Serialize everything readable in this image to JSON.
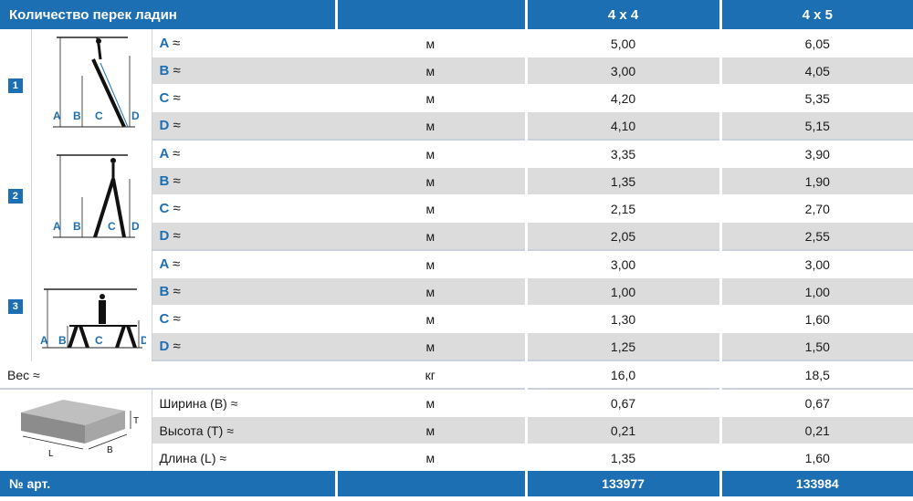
{
  "header": {
    "title": "Количество перек ладин",
    "col1": "4 x 4",
    "col2": "4 x 5"
  },
  "groups": [
    {
      "number": "1",
      "rows": [
        {
          "letter": "A",
          "unit": "м",
          "v1": "5,00",
          "v2": "6,05"
        },
        {
          "letter": "B",
          "unit": "м",
          "v1": "3,00",
          "v2": "4,05"
        },
        {
          "letter": "C",
          "unit": "м",
          "v1": "4,20",
          "v2": "5,35"
        },
        {
          "letter": "D",
          "unit": "м",
          "v1": "4,10",
          "v2": "5,15"
        }
      ]
    },
    {
      "number": "2",
      "rows": [
        {
          "letter": "A",
          "unit": "м",
          "v1": "3,35",
          "v2": "3,90"
        },
        {
          "letter": "B",
          "unit": "м",
          "v1": "1,35",
          "v2": "1,90"
        },
        {
          "letter": "C",
          "unit": "м",
          "v1": "2,15",
          "v2": "2,70"
        },
        {
          "letter": "D",
          "unit": "м",
          "v1": "2,05",
          "v2": "2,55"
        }
      ]
    },
    {
      "number": "3",
      "rows": [
        {
          "letter": "A",
          "unit": "м",
          "v1": "3,00",
          "v2": "3,00"
        },
        {
          "letter": "B",
          "unit": "м",
          "v1": "1,00",
          "v2": "1,00"
        },
        {
          "letter": "C",
          "unit": "м",
          "v1": "1,30",
          "v2": "1,60"
        },
        {
          "letter": "D",
          "unit": "м",
          "v1": "1,25",
          "v2": "1,50"
        }
      ]
    }
  ],
  "approx": "≈",
  "weight": {
    "label": "Вес ≈",
    "unit": "кг",
    "v1": "16,0",
    "v2": "18,5"
  },
  "package": {
    "rows": [
      {
        "label": "Ширина (B) ≈",
        "unit": "м",
        "v1": "0,67",
        "v2": "0,67"
      },
      {
        "label": "Высота (T) ≈",
        "unit": "м",
        "v1": "0,21",
        "v2": "0,21"
      },
      {
        "label": "Длина (L) ≈",
        "unit": "м",
        "v1": "1,35",
        "v2": "1,60"
      }
    ],
    "diagram_labels": {
      "T": "T",
      "L": "L",
      "B": "B"
    }
  },
  "footer": {
    "title": "№ арт.",
    "v1": "133977",
    "v2": "133984"
  },
  "diagram_letters": [
    "A",
    "B",
    "C",
    "D"
  ],
  "colors": {
    "accent": "#1d6fb3",
    "row_gray": "#dcdcdc"
  }
}
